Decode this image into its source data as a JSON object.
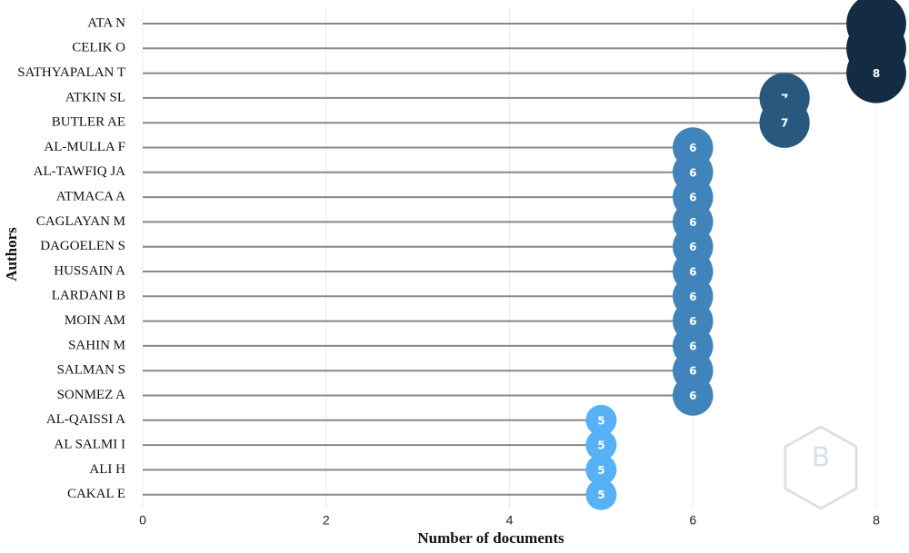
{
  "chart_data": {
    "type": "lollipop",
    "x_label": "Number of documents",
    "y_label": "Authors",
    "categories": [
      "ATA N",
      "CELIK O",
      "SATHYAPALAN T",
      "ATKIN SL",
      "BUTLER AE",
      "AL-MULLA F",
      "AL-TAWFIQ JA",
      "ATMACA A",
      "CAGLAYAN M",
      "DAGOELEN S",
      "HUSSAIN A",
      "LARDANI B",
      "MOIN AM",
      "SAHIN M",
      "SALMAN S",
      "SONMEZ A",
      "AL-QAISSI A",
      "AL SALMI I",
      "ALI H",
      "CAKAL E"
    ],
    "values": [
      8,
      8,
      8,
      7,
      7,
      6,
      6,
      6,
      6,
      6,
      6,
      6,
      6,
      6,
      6,
      6,
      5,
      5,
      5,
      5
    ],
    "xlim": [
      0,
      8.3
    ],
    "xticks": [
      0,
      2,
      4,
      6,
      8
    ],
    "grid": true,
    "stem_color": "#888888",
    "color_scale": {
      "low": "#56b1f7",
      "high": "#132b43"
    }
  }
}
